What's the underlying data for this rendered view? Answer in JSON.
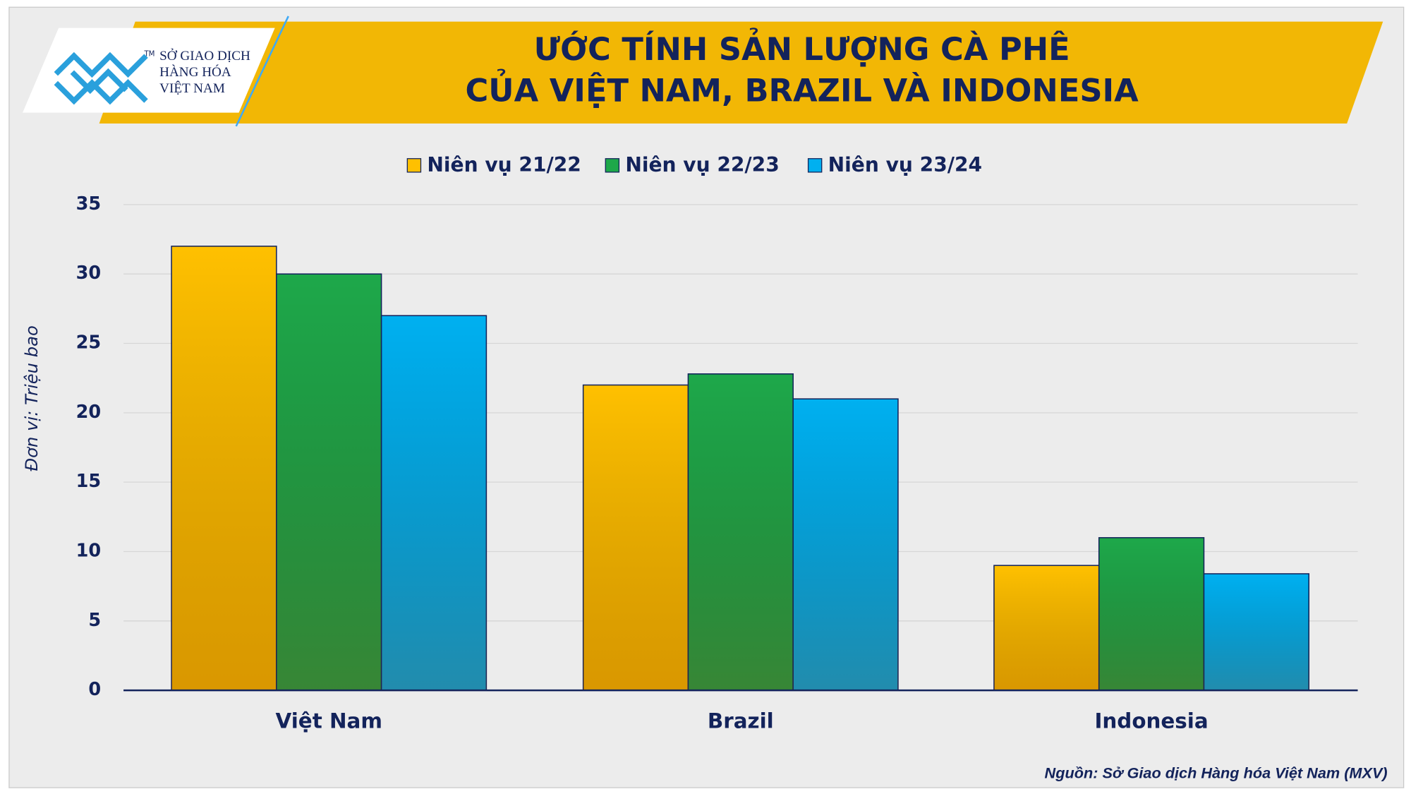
{
  "logo": {
    "lines": [
      "SỞ GIAO DỊCH",
      "HÀNG HÓA",
      "VIỆT NAM"
    ],
    "mark": "TM"
  },
  "chart_data": {
    "type": "bar",
    "title": [
      "ƯỚC TÍNH SẢN LƯỢNG CÀ PHÊ",
      "CỦA VIỆT NAM, BRAZIL VÀ INDONESIA"
    ],
    "y_label": "Đơn vị: Triệu bao",
    "source": "Nguồn: Sở Giao dịch Hàng hóa Việt Nam (MXV)",
    "categories": [
      "Việt Nam",
      "Brazil",
      "Indonesia"
    ],
    "series": [
      {
        "name": "Niên vụ 21/22",
        "color": "#ffc000",
        "values": [
          32,
          22,
          9
        ]
      },
      {
        "name": "Niên vụ 22/23",
        "color": "#1ea84a",
        "values": [
          30,
          22.8,
          11
        ]
      },
      {
        "name": "Niên vụ 23/24",
        "color": "#00b0f0",
        "values": [
          27,
          21,
          8.4
        ]
      }
    ],
    "ylim": [
      0,
      35
    ],
    "yticks": [
      0,
      5,
      10,
      15,
      20,
      25,
      30,
      35
    ],
    "grid": true,
    "legend": "top"
  }
}
